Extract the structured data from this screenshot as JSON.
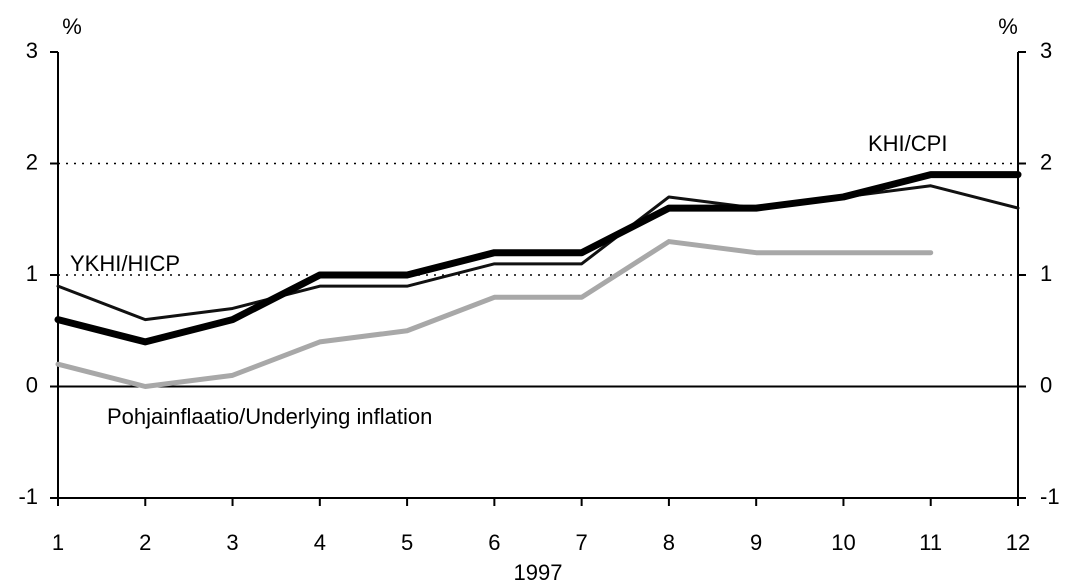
{
  "chart_data": {
    "type": "line",
    "y_label": "%",
    "y2_label": "%",
    "x_label": "1997",
    "x": [
      1,
      2,
      3,
      4,
      5,
      6,
      7,
      8,
      9,
      10,
      11,
      12
    ],
    "xlim": [
      1,
      12
    ],
    "xticks": [
      1,
      2,
      3,
      4,
      5,
      6,
      7,
      8,
      9,
      10,
      11,
      12
    ],
    "ylim": [
      -1,
      3
    ],
    "yticks": [
      -1,
      0,
      1,
      2,
      3
    ],
    "y2lim": [
      -1,
      3
    ],
    "y2ticks": [
      -1,
      0,
      1,
      2,
      3
    ],
    "grid": true,
    "series": [
      {
        "name": "KHI/CPI",
        "color": "#000000",
        "values": [
          0.6,
          0.4,
          0.6,
          1.0,
          1.0,
          1.2,
          1.2,
          1.6,
          1.6,
          1.7,
          1.9,
          1.9
        ]
      },
      {
        "name": "YKHI/HICP",
        "color": "#111111",
        "values": [
          0.9,
          0.6,
          0.7,
          0.9,
          0.9,
          1.1,
          1.1,
          1.7,
          1.6,
          1.7,
          1.8,
          1.6
        ]
      },
      {
        "name": "Pohjainflaatio/Underlying inflation",
        "color": "#a8a8a8",
        "values": [
          0.2,
          0.0,
          0.1,
          0.4,
          0.5,
          0.8,
          0.8,
          1.3,
          1.2,
          1.2,
          1.2,
          null
        ]
      }
    ]
  }
}
